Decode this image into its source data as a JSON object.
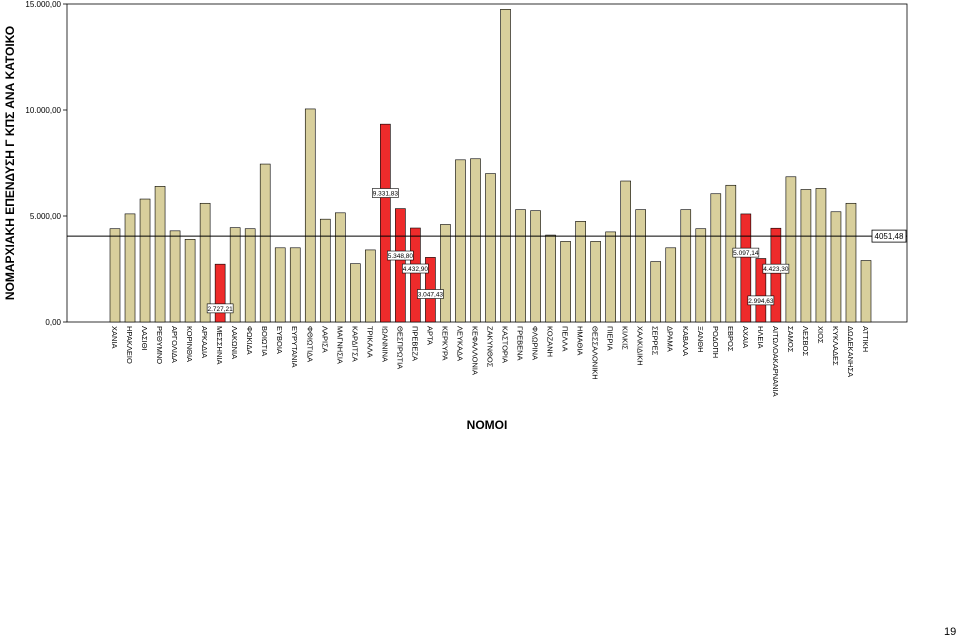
{
  "page_number": "19",
  "chart_data": {
    "type": "bar",
    "xlabel": "ΝΟΜΟΙ",
    "ylabel": "ΝΟΜΑΡΧΙΑΚΗ ΕΠΕΝΔΥΣΗ Γ ΚΠΣ ΑΝΑ ΚΑΤΟΙΚΟ",
    "ylim": [
      0,
      15000
    ],
    "yticks": [
      "0,00",
      "5.000,00",
      "10.000,00",
      "15.000,00"
    ],
    "ytick_values": [
      0,
      5000,
      10000,
      15000
    ],
    "grid": false,
    "reference_line": {
      "value": 4051.48,
      "label": "4051,48"
    },
    "colors": {
      "default": "#d8cf9c",
      "highlight": "#ee2b2b",
      "border": "#000000"
    },
    "categories": [
      "ΧΑΝΙΑ",
      "ΗΡΑΚΛΕΙΟ",
      "ΛΑΣΙΘΙ",
      "ΡΕΘΥΜΝΟ",
      "ΑΡΓΟΛΙΔΑ",
      "ΚΟΡΙΝΘΙΑ",
      "ΑΡΚΑΔΙΑ",
      "ΜΕΣΣΗΝΙΑ",
      "ΛΑΚΩΝΙΑ",
      "ΦΩΚΙΔΑ",
      "ΒΟΙΩΤΙΑ",
      "ΕΥΒΟΙΑ",
      "ΕΥΡΥΤΑΝΙΑ",
      "ΦΘΙΩΤΙΔΑ",
      "ΛΑΡΙΣΑ",
      "ΜΑΓΝΗΣΙΑ",
      "ΚΑΡΔΙΤΣΑ",
      "ΤΡΙΚΑΛΑ",
      "ΙΩΑΝΝΙΝΑ",
      "ΘΕΣΠΡΩΤΙΑ",
      "ΠΡΕΒΕΖΑ",
      "ΑΡΤΑ",
      "ΚΕΡΚΥΡΑ",
      "ΛΕΥΚΑΔΑ",
      "ΚΕΦΑΛΛΟΝΙΑ",
      "ΖΑΚΥΝΘΟΣ",
      "ΚΑΣΤΟΡΙΑ",
      "ΓΡΕΒΕΝΑ",
      "ΦΛΩΡΙΝΑ",
      "ΚΟΖΑΝΗ",
      "ΠΕΛΛΑ",
      "ΗΜΑΘΙΑ",
      "ΘΕΣΣΑΛΟΝΙΚΗ",
      "ΠΙΕΡΙΑ",
      "ΚΙΛΚΙΣ",
      "ΧΑΛΚΙΔΙΚΗ",
      "ΣΕΡΡΕΣ",
      "ΔΡΑΜΑ",
      "ΚΑΒΑΛΑ",
      "ΞΑΝΘΗ",
      "ΡΟΔΟΠΗ",
      "ΕΒΡΟΣ",
      "ΑΧΑΙΑ",
      "ΗΛΕΙΑ",
      "ΑΙΤΩΛΟΑΚΑΡΝΑΝΙΑ",
      "ΣΑΜΟΣ",
      "ΛΕΣΒΟΣ",
      "ΧΙΟΣ",
      "ΚΥΚΛΑΔΕΣ",
      "ΔΩΔΕΚΑΝΗΣΑ",
      "ΑΤΤΙΚΗ"
    ],
    "values": [
      4400,
      5100,
      5800,
      6400,
      4300,
      3900,
      5600,
      2727.21,
      4450,
      4400,
      7450,
      3500,
      3500,
      10050,
      4850,
      5150,
      2750,
      3400,
      9331.83,
      5348.8,
      4432.9,
      3047.43,
      4600,
      7650,
      7700,
      7000,
      14750,
      5300,
      5250,
      4100,
      3800,
      4750,
      3800,
      4250,
      6650,
      5300,
      2850,
      3500,
      5300,
      4400,
      6050,
      6450,
      5097.14,
      2994.63,
      4423.3,
      6850,
      6250,
      6300,
      5200,
      5600,
      2900
    ],
    "highlight": [
      7,
      18,
      19,
      20,
      21,
      42,
      43,
      44
    ],
    "data_labels": {
      "7": "2.727,21",
      "18": "9.331,83",
      "19": "5.348,80",
      "20": "4.432,90",
      "21": "3.047,43",
      "42": "5.097,14",
      "43": "2.994,63",
      "44": "4.423,30"
    }
  }
}
